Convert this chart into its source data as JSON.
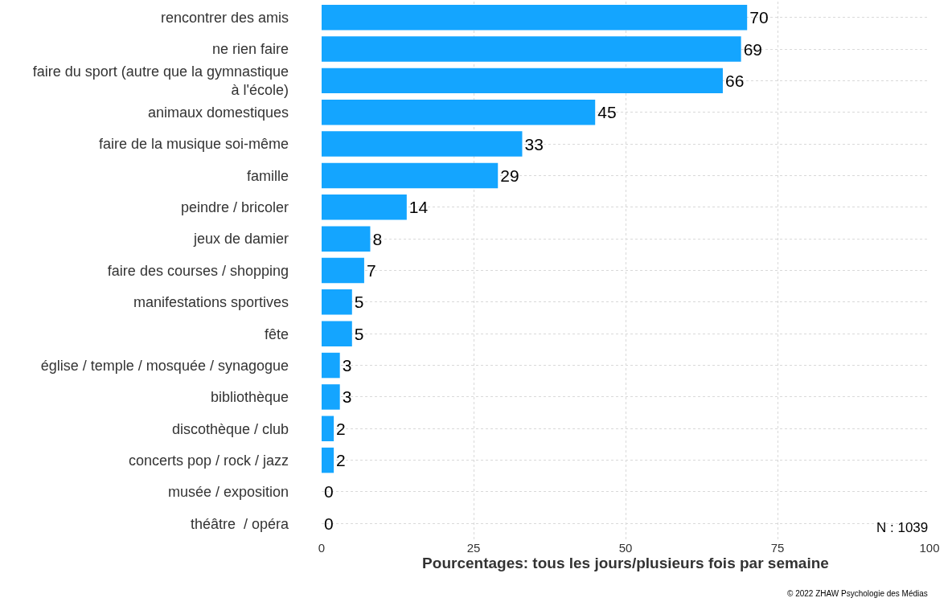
{
  "chart_data": {
    "type": "bar",
    "orientation": "horizontal",
    "xlabel": "Pourcentages: tous les jours/plusieurs fois par semaine",
    "categories": [
      "rencontrer des amis",
      "ne rien faire",
      "faire du sport (autre que la gymnastique\nà l'école)",
      "animaux domestiques",
      "faire de la musique soi-même",
      "famille",
      "peindre / bricoler",
      "jeux de damier",
      "faire des courses / shopping",
      "manifestations sportives",
      "fête",
      "église / temple / mosquée / synagogue",
      "bibliothèque",
      "discothèque / club",
      "concerts pop / rock / jazz",
      "musée / exposition",
      "théâtre  / opéra"
    ],
    "values": [
      70,
      69,
      66,
      45,
      33,
      29,
      14,
      8,
      7,
      5,
      5,
      3,
      3,
      2,
      2,
      0,
      0
    ],
    "color": "#14a5ff",
    "data_labels": true,
    "grid": true,
    "xlim": [
      0,
      100
    ],
    "xticks": [
      0,
      25,
      50,
      75,
      100
    ],
    "annotations": [
      "N : 1039",
      "© 2022 ZHAW Psychologie des Médias"
    ]
  }
}
